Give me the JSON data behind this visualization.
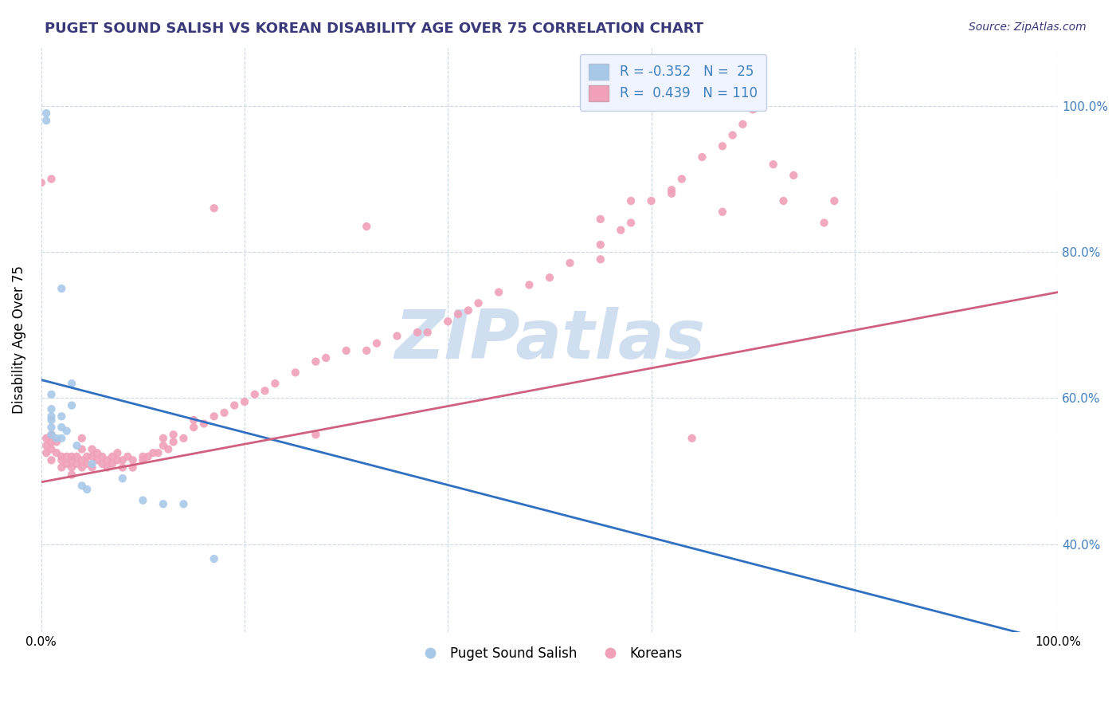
{
  "title": "PUGET SOUND SALISH VS KOREAN DISABILITY AGE OVER 75 CORRELATION CHART",
  "source": "Source: ZipAtlas.com",
  "ylabel": "Disability Age Over 75",
  "watermark": "ZIPatlas",
  "xlim": [
    0,
    1.0
  ],
  "ylim_min": 0.28,
  "ylim_max": 1.08,
  "x_tick_positions": [
    0.0,
    0.2,
    0.4,
    0.6,
    0.8,
    1.0
  ],
  "x_tick_labels": [
    "0.0%",
    "",
    "",
    "",
    "",
    "100.0%"
  ],
  "y_tick_positions": [
    0.4,
    0.6,
    0.8,
    1.0
  ],
  "y_tick_labels": [
    "40.0%",
    "60.0%",
    "80.0%",
    "100.0%"
  ],
  "blue_color": "#a8c8e8",
  "pink_color": "#f0a0b8",
  "blue_line_color": "#3070c0",
  "pink_line_color": "#d06080",
  "title_color": "#3a3a7a",
  "source_color": "#3a3a7a",
  "watermark_color": "#d0dff0",
  "bg_color": "#ffffff",
  "grid_color": "#c8d8e8",
  "legend_box_color": "#f0f4ff",
  "legend_border_color": "#c0cce0",
  "right_tick_color": "#4080c0",
  "blue_scatter_x": [
    0.005,
    0.005,
    0.02,
    0.03,
    0.01,
    0.01,
    0.01,
    0.01,
    0.01,
    0.01,
    0.015,
    0.02,
    0.02,
    0.02,
    0.025,
    0.03,
    0.035,
    0.04,
    0.045,
    0.05,
    0.08,
    0.1,
    0.12,
    0.14,
    0.17
  ],
  "blue_scatter_y": [
    0.99,
    0.98,
    0.75,
    0.62,
    0.605,
    0.585,
    0.575,
    0.57,
    0.56,
    0.55,
    0.545,
    0.575,
    0.56,
    0.545,
    0.555,
    0.59,
    0.535,
    0.48,
    0.475,
    0.51,
    0.49,
    0.46,
    0.455,
    0.455,
    0.38
  ],
  "pink_scatter_x": [
    0.005,
    0.005,
    0.005,
    0.01,
    0.01,
    0.01,
    0.01,
    0.015,
    0.015,
    0.02,
    0.02,
    0.02,
    0.025,
    0.025,
    0.03,
    0.03,
    0.03,
    0.03,
    0.035,
    0.035,
    0.04,
    0.04,
    0.04,
    0.04,
    0.045,
    0.045,
    0.05,
    0.05,
    0.05,
    0.055,
    0.055,
    0.06,
    0.06,
    0.065,
    0.065,
    0.07,
    0.07,
    0.075,
    0.075,
    0.08,
    0.08,
    0.085,
    0.09,
    0.09,
    0.1,
    0.1,
    0.105,
    0.11,
    0.115,
    0.12,
    0.12,
    0.125,
    0.13,
    0.13,
    0.14,
    0.15,
    0.15,
    0.16,
    0.17,
    0.18,
    0.19,
    0.2,
    0.21,
    0.22,
    0.23,
    0.25,
    0.27,
    0.28,
    0.3,
    0.32,
    0.33,
    0.35,
    0.37,
    0.38,
    0.4,
    0.41,
    0.42,
    0.43,
    0.45,
    0.48,
    0.5,
    0.52,
    0.55,
    0.57,
    0.58,
    0.6,
    0.62,
    0.63,
    0.65,
    0.67,
    0.68,
    0.69,
    0.7,
    0.0,
    0.01,
    0.17,
    0.27,
    0.32,
    0.55,
    0.55,
    0.58,
    0.62,
    0.64,
    0.67,
    0.72,
    0.73,
    0.74,
    0.77,
    0.78
  ],
  "pink_scatter_y": [
    0.545,
    0.535,
    0.525,
    0.55,
    0.54,
    0.53,
    0.515,
    0.54,
    0.525,
    0.52,
    0.515,
    0.505,
    0.52,
    0.51,
    0.515,
    0.505,
    0.495,
    0.52,
    0.51,
    0.52,
    0.515,
    0.505,
    0.53,
    0.545,
    0.52,
    0.51,
    0.505,
    0.52,
    0.53,
    0.515,
    0.525,
    0.51,
    0.52,
    0.505,
    0.515,
    0.51,
    0.52,
    0.515,
    0.525,
    0.505,
    0.515,
    0.52,
    0.505,
    0.515,
    0.52,
    0.515,
    0.52,
    0.525,
    0.525,
    0.535,
    0.545,
    0.53,
    0.54,
    0.55,
    0.545,
    0.56,
    0.57,
    0.565,
    0.575,
    0.58,
    0.59,
    0.595,
    0.605,
    0.61,
    0.62,
    0.635,
    0.65,
    0.655,
    0.665,
    0.665,
    0.675,
    0.685,
    0.69,
    0.69,
    0.705,
    0.715,
    0.72,
    0.73,
    0.745,
    0.755,
    0.765,
    0.785,
    0.81,
    0.83,
    0.84,
    0.87,
    0.885,
    0.9,
    0.93,
    0.945,
    0.96,
    0.975,
    0.995,
    0.895,
    0.9,
    0.86,
    0.55,
    0.835,
    0.845,
    0.79,
    0.87,
    0.88,
    0.545,
    0.855,
    0.92,
    0.87,
    0.905,
    0.84,
    0.87
  ],
  "blue_trend_x0": 0.0,
  "blue_trend_x1": 1.0,
  "blue_trend_y0": 0.625,
  "blue_trend_y1": 0.265,
  "pink_trend_x0": 0.0,
  "pink_trend_x1": 1.0,
  "pink_trend_y0": 0.485,
  "pink_trend_y1": 0.745
}
